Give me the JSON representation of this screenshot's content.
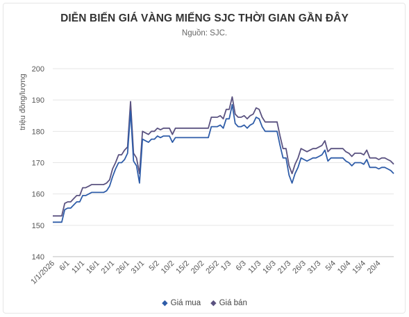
{
  "chart_data": {
    "type": "line",
    "title": "DIỄN BIẾN GIÁ VÀNG MIẾNG SJC THỜI GIAN GẦN ĐÂY",
    "subtitle": "Nguồn: SJC.",
    "ylabel": "triệu đồng/lượng",
    "ylim": [
      140,
      200
    ],
    "yticks": [
      140,
      150,
      160,
      170,
      180,
      190,
      200
    ],
    "x": [
      "2026-01-01",
      "2026-01-02",
      "2026-01-03",
      "2026-01-04",
      "2026-01-05",
      "2026-01-06",
      "2026-01-07",
      "2026-01-08",
      "2026-01-09",
      "2026-01-10",
      "2026-01-11",
      "2026-01-12",
      "2026-01-13",
      "2026-01-14",
      "2026-01-15",
      "2026-01-16",
      "2026-01-17",
      "2026-01-18",
      "2026-01-19",
      "2026-01-20",
      "2026-01-21",
      "2026-01-22",
      "2026-01-23",
      "2026-01-24",
      "2026-01-25",
      "2026-01-26",
      "2026-01-27",
      "2026-01-28",
      "2026-01-29",
      "2026-01-30",
      "2026-01-31",
      "2026-02-01",
      "2026-02-02",
      "2026-02-03",
      "2026-02-04",
      "2026-02-05",
      "2026-02-06",
      "2026-02-07",
      "2026-02-08",
      "2026-02-09",
      "2026-02-10",
      "2026-02-11",
      "2026-02-12",
      "2026-02-13",
      "2026-02-14",
      "2026-02-15",
      "2026-02-16",
      "2026-02-17",
      "2026-02-18",
      "2026-02-19",
      "2026-02-20",
      "2026-02-21",
      "2026-02-22",
      "2026-02-23",
      "2026-02-24",
      "2026-02-25",
      "2026-02-26",
      "2026-02-27",
      "2026-02-28",
      "2026-03-01",
      "2026-03-02",
      "2026-03-03",
      "2026-03-04",
      "2026-03-05",
      "2026-03-06",
      "2026-03-07",
      "2026-03-08",
      "2026-03-09",
      "2026-03-10",
      "2026-03-11",
      "2026-03-12",
      "2026-03-13",
      "2026-03-14",
      "2026-03-15",
      "2026-03-16",
      "2026-03-17",
      "2026-03-18",
      "2026-03-19",
      "2026-03-20",
      "2026-03-21",
      "2026-03-22",
      "2026-03-23",
      "2026-03-24",
      "2026-03-25",
      "2026-03-26",
      "2026-03-27",
      "2026-03-28",
      "2026-03-29",
      "2026-03-30",
      "2026-03-31",
      "2026-04-01",
      "2026-04-02",
      "2026-04-03",
      "2026-04-04",
      "2026-04-05",
      "2026-04-06",
      "2026-04-07",
      "2026-04-08",
      "2026-04-09",
      "2026-04-10",
      "2026-04-11",
      "2026-04-12",
      "2026-04-13",
      "2026-04-14",
      "2026-04-15",
      "2026-04-16",
      "2026-04-17",
      "2026-04-18",
      "2026-04-19",
      "2026-04-20",
      "2026-04-21",
      "2026-04-22",
      "2026-04-23",
      "2026-04-24",
      "2026-04-25"
    ],
    "x_tick_labels": [
      {
        "index": 0,
        "label": "1/1/2026"
      },
      {
        "index": 5,
        "label": "6/1"
      },
      {
        "index": 10,
        "label": "11/1"
      },
      {
        "index": 15,
        "label": "16/1"
      },
      {
        "index": 20,
        "label": "21/1"
      },
      {
        "index": 25,
        "label": "26/1"
      },
      {
        "index": 30,
        "label": "31/1"
      },
      {
        "index": 35,
        "label": "5/2"
      },
      {
        "index": 40,
        "label": "10/2"
      },
      {
        "index": 45,
        "label": "15/2"
      },
      {
        "index": 50,
        "label": "20/2"
      },
      {
        "index": 55,
        "label": "25/2"
      },
      {
        "index": 59,
        "label": "1/3"
      },
      {
        "index": 64,
        "label": "6/3"
      },
      {
        "index": 69,
        "label": "11/3"
      },
      {
        "index": 74,
        "label": "16/3"
      },
      {
        "index": 79,
        "label": "21/3"
      },
      {
        "index": 84,
        "label": "26/3"
      },
      {
        "index": 89,
        "label": "31/3"
      },
      {
        "index": 94,
        "label": "5/4"
      },
      {
        "index": 99,
        "label": "10/4"
      },
      {
        "index": 104,
        "label": "15/4"
      },
      {
        "index": 109,
        "label": "20/4"
      }
    ],
    "series": [
      {
        "name": "Giá mua",
        "color": "#2e5ca8",
        "values": [
          151.0,
          151.0,
          151.0,
          151.0,
          155.0,
          155.5,
          155.5,
          156.5,
          157.5,
          157.5,
          159.5,
          159.5,
          160.0,
          160.5,
          160.5,
          160.5,
          160.5,
          160.5,
          161.0,
          162.5,
          165.5,
          168.0,
          170.0,
          170.0,
          171.0,
          173.0,
          186.5,
          170.5,
          169.0,
          163.5,
          177.5,
          177.0,
          176.5,
          177.5,
          177.5,
          178.5,
          178.0,
          178.5,
          178.5,
          178.5,
          176.5,
          178.0,
          178.0,
          178.0,
          178.0,
          178.0,
          178.0,
          178.0,
          178.0,
          178.0,
          178.0,
          178.0,
          178.0,
          181.5,
          181.5,
          181.5,
          182.0,
          181.0,
          184.0,
          184.0,
          188.5,
          182.5,
          181.5,
          181.5,
          182.0,
          181.0,
          182.0,
          182.5,
          184.5,
          184.0,
          181.5,
          180.0,
          180.0,
          180.0,
          180.0,
          180.0,
          175.5,
          171.5,
          171.5,
          166.0,
          163.5,
          166.5,
          168.5,
          171.5,
          171.0,
          170.5,
          171.0,
          171.5,
          171.5,
          172.0,
          172.5,
          174.0,
          170.5,
          171.5,
          171.5,
          171.5,
          171.5,
          171.5,
          170.5,
          170.0,
          169.0,
          170.0,
          170.0,
          170.0,
          169.5,
          171.0,
          168.5,
          168.5,
          168.5,
          168.0,
          168.5,
          168.5,
          168.0,
          167.5,
          166.5
        ]
      },
      {
        "name": "Giá bán",
        "color": "#5a5280",
        "values": [
          153.0,
          153.0,
          153.0,
          153.0,
          157.0,
          157.5,
          157.5,
          158.5,
          159.5,
          159.5,
          162.0,
          162.0,
          162.5,
          163.0,
          163.0,
          163.0,
          163.0,
          163.0,
          163.5,
          164.5,
          168.0,
          170.0,
          172.5,
          172.5,
          174.0,
          175.0,
          189.5,
          173.0,
          171.5,
          166.5,
          180.0,
          179.5,
          179.0,
          180.0,
          180.0,
          181.0,
          180.5,
          181.0,
          181.0,
          181.0,
          179.0,
          181.0,
          181.0,
          181.0,
          181.0,
          181.0,
          181.0,
          181.0,
          181.0,
          181.0,
          181.0,
          181.0,
          181.0,
          184.5,
          184.5,
          184.5,
          185.0,
          184.0,
          187.0,
          187.0,
          191.0,
          185.5,
          184.5,
          184.5,
          185.0,
          184.0,
          185.0,
          185.5,
          187.5,
          187.0,
          184.5,
          183.0,
          183.0,
          183.0,
          183.0,
          183.0,
          178.5,
          174.5,
          174.5,
          169.0,
          166.5,
          169.5,
          171.5,
          174.5,
          174.0,
          173.5,
          174.0,
          174.5,
          174.5,
          175.0,
          175.5,
          177.0,
          173.5,
          174.5,
          174.5,
          174.5,
          174.5,
          174.5,
          173.5,
          173.0,
          172.0,
          173.0,
          173.0,
          173.0,
          172.5,
          174.0,
          171.5,
          171.5,
          171.5,
          171.0,
          171.5,
          171.5,
          171.0,
          170.5,
          169.5
        ]
      }
    ],
    "legend_position": "bottom",
    "grid": true
  }
}
